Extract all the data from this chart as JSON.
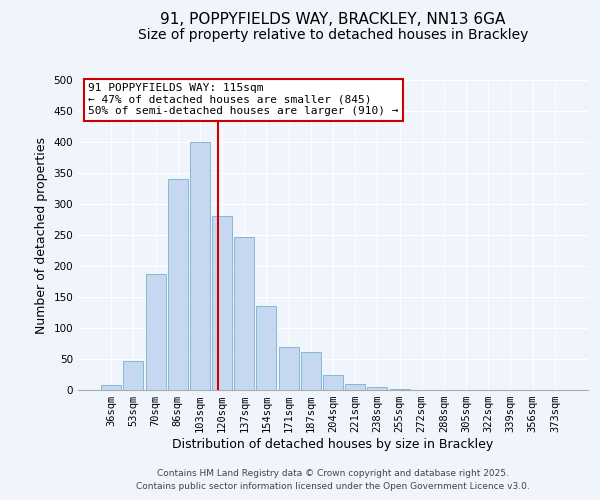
{
  "title": "91, POPPYFIELDS WAY, BRACKLEY, NN13 6GA",
  "subtitle": "Size of property relative to detached houses in Brackley",
  "xlabel": "Distribution of detached houses by size in Brackley",
  "ylabel": "Number of detached properties",
  "categories": [
    "36sqm",
    "53sqm",
    "70sqm",
    "86sqm",
    "103sqm",
    "120sqm",
    "137sqm",
    "154sqm",
    "171sqm",
    "187sqm",
    "204sqm",
    "221sqm",
    "238sqm",
    "255sqm",
    "272sqm",
    "288sqm",
    "305sqm",
    "322sqm",
    "339sqm",
    "356sqm",
    "373sqm"
  ],
  "values": [
    8,
    46,
    187,
    340,
    400,
    280,
    246,
    136,
    70,
    62,
    25,
    10,
    5,
    2,
    0,
    0,
    0,
    0,
    0,
    0,
    0
  ],
  "bar_color": "#c5d8f0",
  "bar_edge_color": "#7aafd4",
  "vline_x_index": 4.82,
  "vline_color": "#cc0000",
  "annotation_text": "91 POPPYFIELDS WAY: 115sqm\n← 47% of detached houses are smaller (845)\n50% of semi-detached houses are larger (910) →",
  "annotation_box_color": "#ffffff",
  "annotation_box_edge_color": "#cc0000",
  "ylim": [
    0,
    500
  ],
  "yticks": [
    0,
    50,
    100,
    150,
    200,
    250,
    300,
    350,
    400,
    450,
    500
  ],
  "footer_line1": "Contains HM Land Registry data © Crown copyright and database right 2025.",
  "footer_line2": "Contains public sector information licensed under the Open Government Licence v3.0.",
  "background_color": "#f0f5fc",
  "grid_color": "#ffffff",
  "title_fontsize": 11,
  "subtitle_fontsize": 10,
  "axis_label_fontsize": 9,
  "tick_fontsize": 7.5,
  "footer_fontsize": 6.5,
  "annotation_fontsize": 8
}
